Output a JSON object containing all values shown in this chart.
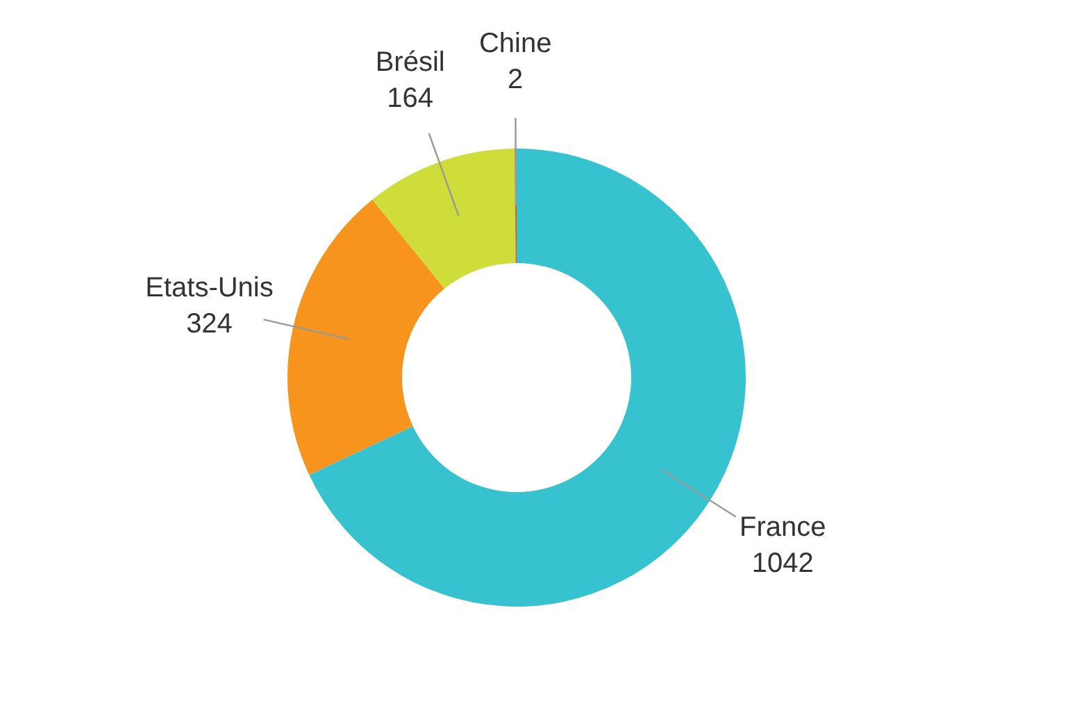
{
  "chart_data": {
    "type": "donut",
    "categories": [
      "France",
      "Etats-Unis",
      "Brésil",
      "Chine"
    ],
    "values": [
      1042,
      324,
      164,
      2
    ],
    "colors": [
      "#36c3cf",
      "#f7941d",
      "#cfdd3a",
      "#e0562b"
    ],
    "data_labels": true,
    "legend": false
  }
}
